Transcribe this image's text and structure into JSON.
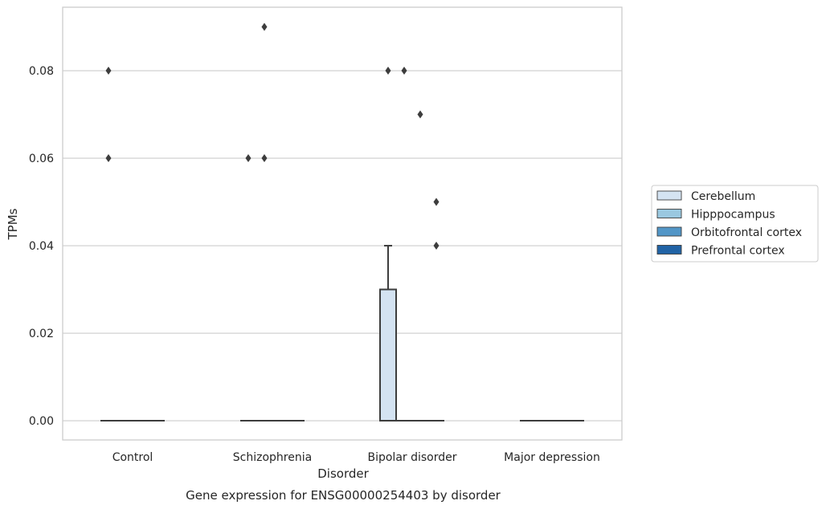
{
  "chart_data": {
    "type": "box",
    "title": "",
    "caption": "Gene expression for ENSG00000254403 by disorder",
    "xlabel": "Disorder",
    "ylabel": "TPMs",
    "ylim": [
      -0.0044,
      0.0945
    ],
    "yticks": [
      0.0,
      0.02,
      0.04,
      0.06,
      0.08
    ],
    "ytick_labels": [
      "0.00",
      "0.02",
      "0.04",
      "0.06",
      "0.08"
    ],
    "grid": "horizontal",
    "legend_position": "right",
    "categories": [
      "Control",
      "Schizophrenia",
      "Bipolar disorder",
      "Major depression"
    ],
    "series": [
      {
        "name": "Cerebellum",
        "color": "#d4e3f2",
        "boxes": [
          {
            "category": "Control",
            "q1": 0.0,
            "median": 0.0,
            "q3": 0.0,
            "whisker_low": 0.0,
            "whisker_high": 0.0,
            "outliers": [
              0.06,
              0.08
            ]
          },
          {
            "category": "Schizophrenia",
            "q1": 0.0,
            "median": 0.0,
            "q3": 0.0,
            "whisker_low": 0.0,
            "whisker_high": 0.0,
            "outliers": [
              0.06
            ]
          },
          {
            "category": "Bipolar disorder",
            "q1": 0.0,
            "median": 0.0,
            "q3": 0.03,
            "whisker_low": 0.0,
            "whisker_high": 0.04,
            "outliers": [
              0.08
            ]
          },
          {
            "category": "Major depression",
            "q1": 0.0,
            "median": 0.0,
            "q3": 0.0,
            "whisker_low": 0.0,
            "whisker_high": 0.0,
            "outliers": []
          }
        ]
      },
      {
        "name": "Hipppocampus",
        "color": "#9ac8e0",
        "boxes": [
          {
            "category": "Control",
            "q1": 0.0,
            "median": 0.0,
            "q3": 0.0,
            "whisker_low": 0.0,
            "whisker_high": 0.0,
            "outliers": []
          },
          {
            "category": "Schizophrenia",
            "q1": 0.0,
            "median": 0.0,
            "q3": 0.0,
            "whisker_low": 0.0,
            "whisker_high": 0.0,
            "outliers": [
              0.06,
              0.09
            ]
          },
          {
            "category": "Bipolar disorder",
            "q1": 0.0,
            "median": 0.0,
            "q3": 0.0,
            "whisker_low": 0.0,
            "whisker_high": 0.0,
            "outliers": [
              0.08
            ]
          },
          {
            "category": "Major depression",
            "q1": 0.0,
            "median": 0.0,
            "q3": 0.0,
            "whisker_low": 0.0,
            "whisker_high": 0.0,
            "outliers": []
          }
        ]
      },
      {
        "name": "Orbitofrontal cortex",
        "color": "#5296c7",
        "boxes": [
          {
            "category": "Control",
            "q1": 0.0,
            "median": 0.0,
            "q3": 0.0,
            "whisker_low": 0.0,
            "whisker_high": 0.0,
            "outliers": []
          },
          {
            "category": "Schizophrenia",
            "q1": 0.0,
            "median": 0.0,
            "q3": 0.0,
            "whisker_low": 0.0,
            "whisker_high": 0.0,
            "outliers": []
          },
          {
            "category": "Bipolar disorder",
            "q1": 0.0,
            "median": 0.0,
            "q3": 0.0,
            "whisker_low": 0.0,
            "whisker_high": 0.0,
            "outliers": [
              0.07
            ]
          },
          {
            "category": "Major depression",
            "q1": 0.0,
            "median": 0.0,
            "q3": 0.0,
            "whisker_low": 0.0,
            "whisker_high": 0.0,
            "outliers": []
          }
        ]
      },
      {
        "name": "Prefrontal cortex",
        "color": "#2163a5",
        "boxes": [
          {
            "category": "Control",
            "q1": 0.0,
            "median": 0.0,
            "q3": 0.0,
            "whisker_low": 0.0,
            "whisker_high": 0.0,
            "outliers": []
          },
          {
            "category": "Schizophrenia",
            "q1": 0.0,
            "median": 0.0,
            "q3": 0.0,
            "whisker_low": 0.0,
            "whisker_high": 0.0,
            "outliers": []
          },
          {
            "category": "Bipolar disorder",
            "q1": 0.0,
            "median": 0.0,
            "q3": 0.0,
            "whisker_low": 0.0,
            "whisker_high": 0.0,
            "outliers": [
              0.04,
              0.05
            ]
          },
          {
            "category": "Major depression",
            "q1": 0.0,
            "median": 0.0,
            "q3": 0.0,
            "whisker_low": 0.0,
            "whisker_high": 0.0,
            "outliers": []
          }
        ]
      }
    ]
  }
}
